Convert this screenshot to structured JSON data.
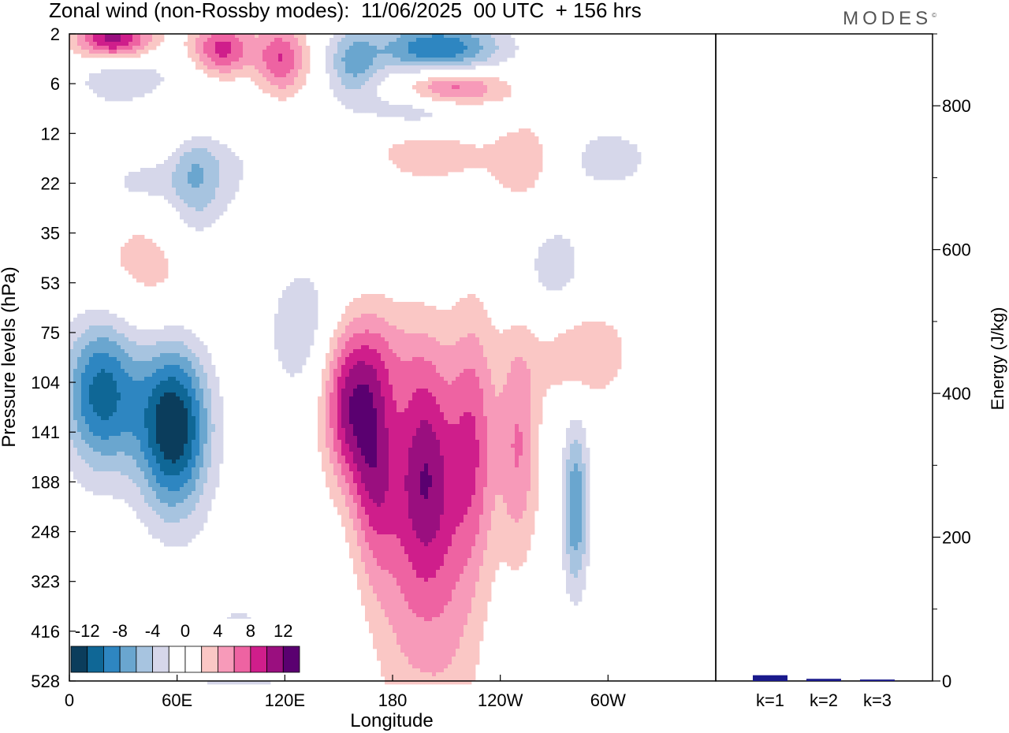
{
  "title": "Zonal wind (non-Rossby modes):  11/06/2025  00 UTC  + 156 hrs",
  "logo": "MODES",
  "chart_data": [
    {
      "type": "heatmap",
      "title": "Zonal wind (non-Rossby modes):  11/06/2025  00 UTC  + 156 hrs",
      "xlabel": "Longitude",
      "ylabel": "Pressure levels (hPa)",
      "x_ticks": [
        "0",
        "60E",
        "120E",
        "180",
        "120W",
        "60W"
      ],
      "y_ticks": [
        "2",
        "6",
        "12",
        "22",
        "35",
        "53",
        "75",
        "104",
        "141",
        "188",
        "248",
        "323",
        "416",
        "528"
      ],
      "colorbar": {
        "labels": [
          "-12",
          "-8",
          "-4",
          "0",
          "4",
          "8",
          "12"
        ],
        "levels": [
          -14,
          -12,
          -10,
          -8,
          -6,
          -4,
          -2,
          0,
          2,
          4,
          6,
          8,
          10,
          12,
          14
        ],
        "colors": [
          "#0b3d5c",
          "#0f6796",
          "#2e86c1",
          "#6aa6cf",
          "#a7c4e0",
          "#d6d7ea",
          "#ffffff",
          "#ffffff",
          "#fac7c5",
          "#f79ab9",
          "#ee63a2",
          "#cf1e8b",
          "#9a0f7f",
          "#5a0070"
        ]
      },
      "features": [
        {
          "lon": 58,
          "lev": 7.9,
          "value": -14,
          "sx": 14,
          "sy": 1.2
        },
        {
          "lon": 18,
          "lev": 7.2,
          "value": -11,
          "sx": 15,
          "sy": 1.1
        },
        {
          "lon": 198,
          "lev": 8.7,
          "value": 10,
          "sx": 12,
          "sy": 1.6
        },
        {
          "lon": 170,
          "lev": 8.6,
          "value": 9,
          "sx": 9,
          "sy": 1.6
        },
        {
          "lon": 155,
          "lev": 7.6,
          "value": 9,
          "sx": 10,
          "sy": 1.1
        },
        {
          "lon": 225,
          "lev": 8.2,
          "value": 7,
          "sx": 9,
          "sy": 1.8
        },
        {
          "lon": 250,
          "lev": 8.3,
          "value": 6,
          "sx": 8,
          "sy": 1.6
        },
        {
          "lon": 185,
          "lev": 11.5,
          "value": 3,
          "sx": 12,
          "sy": 2.0
        },
        {
          "lon": 210,
          "lev": 11.5,
          "value": 4,
          "sx": 14,
          "sy": 2.2
        },
        {
          "lon": 45,
          "lev": 4.8,
          "value": 3,
          "sx": 30,
          "sy": 1.0
        },
        {
          "lon": 170,
          "lev": 6.5,
          "value": 3,
          "sx": 25,
          "sy": 0.8
        },
        {
          "lon": 285,
          "lev": 6.4,
          "value": 4,
          "sx": 20,
          "sy": 0.7
        },
        {
          "lon": 95,
          "lev": 13.0,
          "value": -3,
          "sx": 20,
          "sy": 1.5
        },
        {
          "lon": 80,
          "lev": 2.5,
          "value": -3,
          "sx": 20,
          "sy": 1.0
        },
        {
          "lon": 282,
          "lev": 9.5,
          "value": -8,
          "sx": 5,
          "sy": 1.2
        },
        {
          "lon": 270,
          "lev": 4.7,
          "value": -3,
          "sx": 15,
          "sy": 0.9
        },
        {
          "lon": 130,
          "lev": 6.0,
          "value": -4,
          "sx": 15,
          "sy": 1.0
        },
        {
          "lon": 25,
          "lev": 0.1,
          "value": 11,
          "sx": 15,
          "sy": 0.3
        },
        {
          "lon": 85,
          "lev": 0.3,
          "value": 9,
          "sx": 12,
          "sy": 0.4
        },
        {
          "lon": 118,
          "lev": 0.5,
          "value": 8,
          "sx": 10,
          "sy": 0.5
        },
        {
          "lon": 205,
          "lev": 0.3,
          "value": -10,
          "sx": 25,
          "sy": 0.4
        },
        {
          "lon": 158,
          "lev": 0.6,
          "value": -6,
          "sx": 10,
          "sy": 0.5
        },
        {
          "lon": 213,
          "lev": 1.1,
          "value": 9,
          "sx": 20,
          "sy": 0.3
        },
        {
          "lon": 200,
          "lev": 1.5,
          "value": -5,
          "sx": 25,
          "sy": 0.3
        },
        {
          "lon": 30,
          "lev": 0.9,
          "value": -4,
          "sx": 18,
          "sy": 0.4
        },
        {
          "lon": 70,
          "lev": 1.8,
          "value": 4,
          "sx": 20,
          "sy": 0.4
        },
        {
          "lon": 70,
          "lev": 2.9,
          "value": -4,
          "sx": 10,
          "sy": 1.0
        },
        {
          "lon": 200,
          "lev": 2.4,
          "value": 3,
          "sx": 25,
          "sy": 0.5
        },
        {
          "lon": 255,
          "lev": 2.6,
          "value": 3,
          "sx": 15,
          "sy": 0.8
        },
        {
          "lon": 40,
          "lev": 3.0,
          "value": -3,
          "sx": 15,
          "sy": 0.3
        },
        {
          "lon": 300,
          "lev": 2.5,
          "value": -3,
          "sx": 20,
          "sy": 0.5
        }
      ]
    },
    {
      "type": "bar",
      "categories": [
        "k=1",
        "k=2",
        "k=3"
      ],
      "values": [
        8,
        3,
        2
      ],
      "ylabel": "Energy (J/kg)",
      "ylim": [
        0,
        900
      ],
      "y_ticks": [
        "0",
        "200",
        "400",
        "600",
        "800"
      ],
      "bar_color": "#1a1a8c"
    }
  ]
}
